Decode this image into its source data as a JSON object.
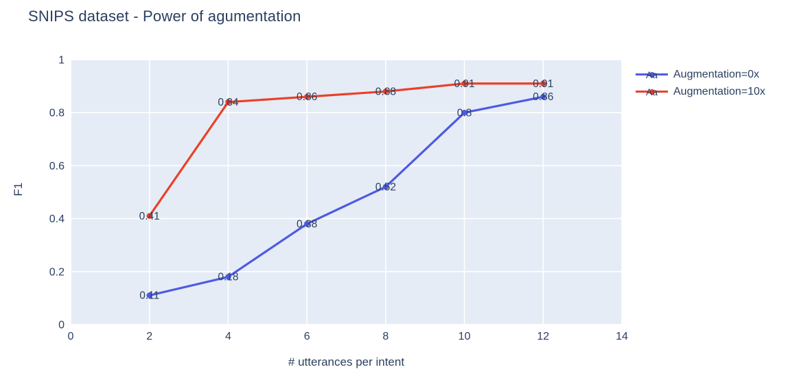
{
  "chart_data": {
    "type": "line",
    "title": "SNIPS dataset - Power of agumentation",
    "xlabel": "# utterances per intent",
    "ylabel": "F1",
    "xlim": [
      0,
      14
    ],
    "ylim": [
      0,
      1
    ],
    "x_ticks": [
      0,
      2,
      4,
      6,
      8,
      10,
      12,
      14
    ],
    "y_ticks": [
      0,
      0.2,
      0.4,
      0.6,
      0.8,
      1
    ],
    "x_tick_labels": [
      "0",
      "2",
      "4",
      "6",
      "8",
      "10",
      "12",
      "14"
    ],
    "y_tick_labels": [
      "0",
      "0.2",
      "0.4",
      "0.6",
      "0.8",
      "1"
    ],
    "x": [
      2,
      4,
      6,
      8,
      10,
      12
    ],
    "series": [
      {
        "name": "Augmentation=0x",
        "color": "#4e5ae2",
        "values": [
          0.11,
          0.18,
          0.38,
          0.52,
          0.8,
          0.86
        ],
        "labels": [
          "0.11",
          "0.18",
          "0.38",
          "0.52",
          "0.8",
          "0.86"
        ]
      },
      {
        "name": "Augmentation=10x",
        "color": "#eb4028",
        "values": [
          0.41,
          0.84,
          0.86,
          0.88,
          0.91,
          0.91
        ],
        "labels": [
          "0.41",
          "0.84",
          "0.86",
          "0.88",
          "0.91",
          "0.91"
        ]
      }
    ],
    "legend_sample_text": "Aa",
    "legend_position": "right",
    "grid": true,
    "plot_bg": "#e5ecf6",
    "grid_color": "#ffffff",
    "text_color": "#2a3f5f"
  }
}
